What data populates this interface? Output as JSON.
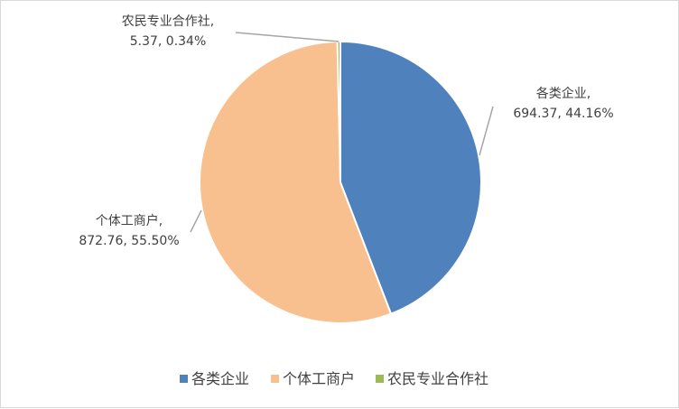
{
  "chart_data": {
    "type": "pie",
    "title": "",
    "legend_position": "bottom",
    "slices": [
      {
        "name": "各类企业",
        "value": 694.37,
        "percent_label": "44.16%",
        "value_label": "694.37",
        "color": "#4f81bd"
      },
      {
        "name": "个体工商户",
        "value": 872.76,
        "percent_label": "55.50%",
        "value_label": "872.76",
        "color": "#f9c08f"
      },
      {
        "name": "农民专业合作社",
        "value": 5.37,
        "percent_label": "0.34%",
        "value_label": "5.37",
        "color": "#9bbb59"
      }
    ]
  }
}
